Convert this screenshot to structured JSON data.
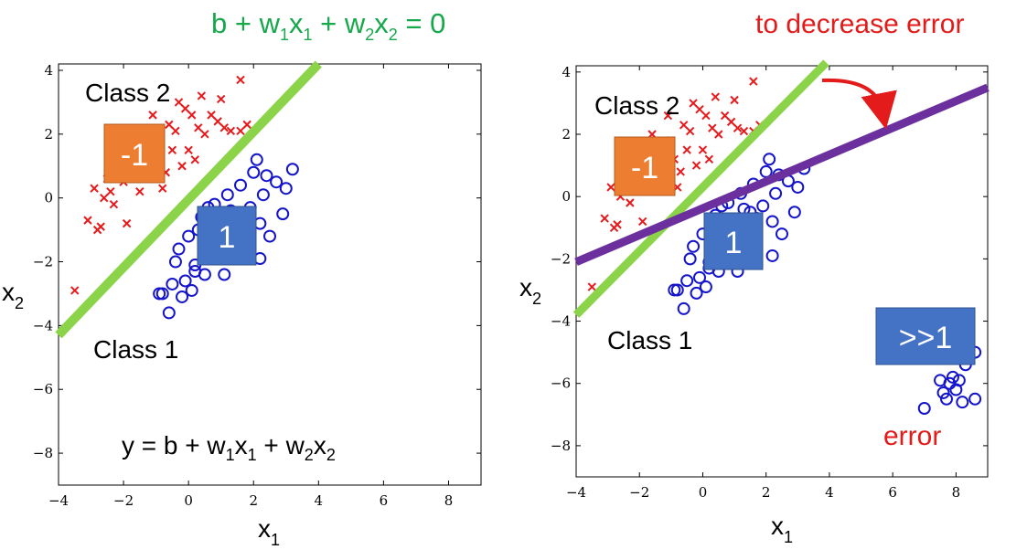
{
  "colors": {
    "class2_marker": "#e8191b",
    "class1_marker": "#1414cc",
    "boundary_line": "#8bd44a",
    "new_line": "#6b2f9e",
    "neg_box": "#ed7d31",
    "pos_box": "#4472c4",
    "green_text": "#17a84b",
    "red_text": "#e31b1b"
  },
  "annotations": {
    "boundary_equation": {
      "b": "b + w",
      "s1": "1",
      "x1": "x",
      "s2": "1",
      "mid": " + w",
      "s3": "2",
      "x2": "x",
      "s4": "2",
      "end": " = 0"
    },
    "decrease_error": "to decrease error",
    "error_label": "error"
  },
  "chart_data": [
    {
      "type": "scatter",
      "id": "left",
      "xlim": [
        -4,
        9
      ],
      "ylim": [
        -9,
        4.2
      ],
      "xticks": [
        -4,
        -2,
        0,
        2,
        4,
        6,
        8
      ],
      "yticks": [
        4,
        2,
        0,
        -2,
        -4,
        -6,
        -8
      ],
      "xtick_labels": [
        "−4",
        "−2",
        "0",
        "2",
        "4",
        "6",
        "8"
      ],
      "ytick_labels": [
        "4",
        "2",
        "0",
        "−2",
        "−4",
        "−6",
        "−8"
      ],
      "xlabel": {
        "base": "x",
        "sub": "1"
      },
      "ylabel": {
        "base": "x",
        "sub": "2"
      },
      "class2_label": "Class 2",
      "class1_label": "Class 1",
      "neg_box_label": "-1",
      "pos_box_label": "1",
      "model_equation": {
        "lead": "y = b + w",
        "s1": "1",
        "x1": "x",
        "s2": "1",
        "mid": " + w",
        "s3": "2",
        "x2": "x",
        "s4": "2"
      },
      "boundary": [
        [
          -4,
          -4.3
        ],
        [
          4,
          4.2
        ]
      ],
      "class2": [
        [
          -3.5,
          -2.9
        ],
        [
          -3.1,
          -0.7
        ],
        [
          -2.9,
          0.3
        ],
        [
          -2.8,
          -1.0
        ],
        [
          -2.7,
          -0.9
        ],
        [
          -2.6,
          0.0
        ],
        [
          -2.5,
          0.6
        ],
        [
          -2.4,
          0.2
        ],
        [
          -2.3,
          -0.2
        ],
        [
          -2.2,
          0.9
        ],
        [
          -2.0,
          0.5
        ],
        [
          -1.9,
          -0.8
        ],
        [
          -1.8,
          1.2
        ],
        [
          -1.6,
          2.0
        ],
        [
          -1.5,
          0.2
        ],
        [
          -1.4,
          0.9
        ],
        [
          -1.3,
          0.6
        ],
        [
          -1.2,
          1.4
        ],
        [
          -1.1,
          2.6
        ],
        [
          -1.0,
          1.8
        ],
        [
          -0.9,
          1.2
        ],
        [
          -0.8,
          0.3
        ],
        [
          -0.7,
          0.8
        ],
        [
          -0.6,
          2.3
        ],
        [
          -0.5,
          1.5
        ],
        [
          -0.4,
          2.1
        ],
        [
          -0.3,
          3.0
        ],
        [
          -0.2,
          1.0
        ],
        [
          -0.1,
          2.8
        ],
        [
          0.0,
          1.5
        ],
        [
          0.1,
          2.6
        ],
        [
          0.2,
          1.2
        ],
        [
          0.3,
          2.2
        ],
        [
          0.4,
          3.2
        ],
        [
          0.5,
          2.0
        ],
        [
          0.7,
          2.6
        ],
        [
          0.9,
          2.4
        ],
        [
          1.0,
          3.1
        ],
        [
          1.1,
          2.2
        ],
        [
          1.3,
          2.1
        ],
        [
          1.6,
          3.7
        ],
        [
          1.6,
          2.1
        ],
        [
          1.8,
          2.3
        ]
      ],
      "class1": [
        [
          -0.9,
          -3.0
        ],
        [
          -0.8,
          -3.0
        ],
        [
          -0.6,
          -3.6
        ],
        [
          -0.5,
          -2.7
        ],
        [
          -0.4,
          -2.0
        ],
        [
          -0.3,
          -1.6
        ],
        [
          -0.2,
          -3.1
        ],
        [
          -0.1,
          -2.6
        ],
        [
          0.0,
          -1.2
        ],
        [
          0.1,
          -2.9
        ],
        [
          0.2,
          -2.3
        ],
        [
          0.3,
          -1.0
        ],
        [
          0.4,
          -0.6
        ],
        [
          0.5,
          -2.4
        ],
        [
          0.6,
          -0.3
        ],
        [
          0.7,
          -1.3
        ],
        [
          0.8,
          -0.2
        ],
        [
          0.9,
          -0.9
        ],
        [
          1.0,
          -1.6
        ],
        [
          1.1,
          -2.4
        ],
        [
          1.2,
          0.1
        ],
        [
          1.3,
          -0.4
        ],
        [
          1.4,
          -1.1
        ],
        [
          1.5,
          -0.5
        ],
        [
          1.6,
          0.4
        ],
        [
          1.7,
          -0.7
        ],
        [
          1.9,
          -0.3
        ],
        [
          2.0,
          0.8
        ],
        [
          2.1,
          1.2
        ],
        [
          2.2,
          -0.8
        ],
        [
          2.3,
          0.1
        ],
        [
          2.4,
          0.7
        ],
        [
          2.5,
          -1.2
        ],
        [
          2.7,
          0.5
        ],
        [
          2.9,
          -0.5
        ],
        [
          3.0,
          0.3
        ],
        [
          3.2,
          0.9
        ],
        [
          2.2,
          -1.9
        ],
        [
          0.2,
          -2.1
        ]
      ]
    },
    {
      "type": "scatter",
      "id": "right",
      "xlim": [
        -4,
        9
      ],
      "ylim": [
        -9,
        4.2
      ],
      "xticks": [
        -4,
        -2,
        0,
        2,
        4,
        6,
        8
      ],
      "yticks": [
        4,
        2,
        0,
        -2,
        -4,
        -6,
        -8
      ],
      "xtick_labels": [
        "−4",
        "−2",
        "0",
        "2",
        "4",
        "6",
        "8"
      ],
      "ytick_labels": [
        "4",
        "2",
        "0",
        "−2",
        "−4",
        "−6",
        "−8"
      ],
      "xlabel": {
        "base": "x",
        "sub": "1"
      },
      "ylabel": {
        "base": "x",
        "sub": "2"
      },
      "class2_label": "Class 2",
      "class1_label": "Class 1",
      "neg_box_label": "-1",
      "pos_box_label": "1",
      "outlier_box_label": ">>1",
      "boundary": [
        [
          -4,
          -3.8
        ],
        [
          3.9,
          4.3
        ]
      ],
      "new_boundary": [
        [
          -4,
          -2.1
        ],
        [
          9,
          3.5
        ]
      ],
      "class2": [
        [
          -3.5,
          -2.9
        ],
        [
          -3.1,
          -0.7
        ],
        [
          -2.9,
          0.3
        ],
        [
          -2.8,
          -1.0
        ],
        [
          -2.7,
          -0.9
        ],
        [
          -2.6,
          0.0
        ],
        [
          -2.5,
          0.6
        ],
        [
          -2.4,
          0.2
        ],
        [
          -2.3,
          -0.2
        ],
        [
          -2.2,
          0.9
        ],
        [
          -2.0,
          0.5
        ],
        [
          -1.9,
          -0.8
        ],
        [
          -1.8,
          1.2
        ],
        [
          -1.6,
          2.0
        ],
        [
          -1.5,
          0.2
        ],
        [
          -1.4,
          0.9
        ],
        [
          -1.3,
          0.6
        ],
        [
          -1.2,
          1.4
        ],
        [
          -1.1,
          2.6
        ],
        [
          -1.0,
          1.8
        ],
        [
          -0.9,
          1.2
        ],
        [
          -0.8,
          0.3
        ],
        [
          -0.7,
          0.8
        ],
        [
          -0.6,
          2.3
        ],
        [
          -0.5,
          1.5
        ],
        [
          -0.4,
          2.1
        ],
        [
          -0.3,
          3.0
        ],
        [
          -0.2,
          1.0
        ],
        [
          -0.1,
          2.8
        ],
        [
          0.0,
          1.5
        ],
        [
          0.1,
          2.6
        ],
        [
          0.2,
          1.2
        ],
        [
          0.3,
          2.2
        ],
        [
          0.4,
          3.2
        ],
        [
          0.5,
          2.0
        ],
        [
          0.7,
          2.6
        ],
        [
          0.9,
          2.4
        ],
        [
          1.0,
          3.1
        ],
        [
          1.1,
          2.2
        ],
        [
          1.3,
          2.1
        ],
        [
          1.6,
          3.7
        ],
        [
          1.6,
          2.1
        ],
        [
          1.8,
          2.3
        ]
      ],
      "class1": [
        [
          -0.9,
          -3.0
        ],
        [
          -0.8,
          -3.0
        ],
        [
          -0.6,
          -3.6
        ],
        [
          -0.5,
          -2.7
        ],
        [
          -0.4,
          -2.0
        ],
        [
          -0.3,
          -1.6
        ],
        [
          -0.2,
          -3.1
        ],
        [
          -0.1,
          -2.6
        ],
        [
          0.0,
          -1.2
        ],
        [
          0.1,
          -2.9
        ],
        [
          0.2,
          -2.3
        ],
        [
          0.3,
          -1.0
        ],
        [
          0.4,
          -0.6
        ],
        [
          0.5,
          -2.4
        ],
        [
          0.6,
          -0.3
        ],
        [
          0.7,
          -1.3
        ],
        [
          0.8,
          -0.2
        ],
        [
          0.9,
          -0.9
        ],
        [
          1.0,
          -1.6
        ],
        [
          1.1,
          -2.4
        ],
        [
          1.2,
          0.1
        ],
        [
          1.3,
          -0.4
        ],
        [
          1.4,
          -1.1
        ],
        [
          1.5,
          -0.5
        ],
        [
          1.6,
          0.4
        ],
        [
          1.7,
          -0.7
        ],
        [
          1.9,
          -0.3
        ],
        [
          2.0,
          0.8
        ],
        [
          2.1,
          1.2
        ],
        [
          2.2,
          -0.8
        ],
        [
          2.3,
          0.1
        ],
        [
          2.4,
          0.7
        ],
        [
          2.5,
          -1.2
        ],
        [
          2.7,
          0.5
        ],
        [
          2.9,
          -0.5
        ],
        [
          3.0,
          0.3
        ],
        [
          3.2,
          0.9
        ],
        [
          2.2,
          -1.9
        ],
        [
          0.2,
          -2.1
        ],
        [
          7.0,
          -6.8
        ],
        [
          7.5,
          -5.9
        ],
        [
          7.6,
          -6.3
        ],
        [
          7.7,
          -6.5
        ],
        [
          7.8,
          -6.0
        ],
        [
          7.9,
          -5.8
        ],
        [
          8.0,
          -6.2
        ],
        [
          8.1,
          -5.9
        ],
        [
          8.2,
          -6.6
        ],
        [
          8.3,
          -5.4
        ],
        [
          8.6,
          -6.5
        ],
        [
          8.3,
          -4.7
        ],
        [
          8.6,
          -5.0
        ]
      ]
    }
  ]
}
